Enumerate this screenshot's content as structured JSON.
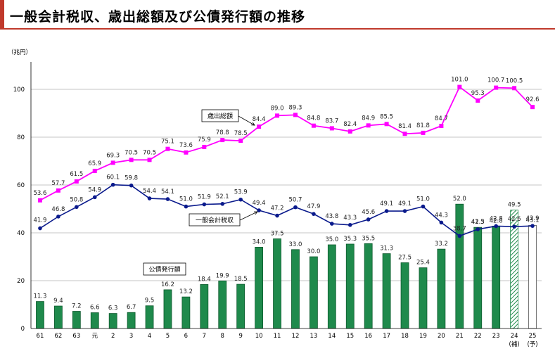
{
  "page": {
    "title": "一般会計税収、歳出総額及び公債発行額の推移",
    "accent_color": "#c0392b"
  },
  "chart_data": {
    "type": "bar",
    "unit_label": "（兆円）",
    "ylim": [
      0,
      110
    ],
    "yticks": [
      0,
      20,
      40,
      60,
      80,
      100
    ],
    "categories": [
      "61",
      "62",
      "63",
      "元",
      "2",
      "3",
      "4",
      "5",
      "6",
      "7",
      "8",
      "9",
      "10",
      "11",
      "12",
      "13",
      "14",
      "15",
      "16",
      "17",
      "18",
      "19",
      "20",
      "21",
      "22",
      "23",
      "24",
      "25"
    ],
    "category_notes": {
      "24": "(補)",
      "25": "(予)"
    },
    "series": [
      {
        "name": "歳出総額",
        "kind": "line",
        "color": "#ff00ff",
        "marker": "square",
        "values": [
          53.6,
          57.7,
          61.5,
          65.9,
          69.3,
          70.5,
          70.5,
          75.1,
          73.6,
          75.9,
          78.8,
          78.5,
          84.4,
          89.0,
          89.3,
          84.8,
          83.7,
          82.4,
          84.9,
          85.5,
          81.4,
          81.8,
          84.7,
          101.0,
          95.3,
          100.7,
          100.5,
          92.6
        ]
      },
      {
        "name": "一般会計税収",
        "kind": "line",
        "color": "#0a1a8c",
        "marker": "circle",
        "values": [
          41.9,
          46.8,
          50.8,
          54.9,
          60.1,
          59.8,
          54.4,
          54.1,
          51.0,
          51.9,
          52.1,
          53.9,
          49.4,
          47.2,
          50.7,
          47.9,
          43.8,
          43.3,
          45.6,
          49.1,
          49.1,
          51.0,
          44.3,
          38.7,
          41.5,
          42.8,
          42.6,
          42.9
        ]
      },
      {
        "name": "公債発行額",
        "kind": "bar",
        "color": "#1f8a4c",
        "values": [
          11.3,
          9.4,
          7.2,
          6.6,
          6.3,
          6.7,
          9.5,
          16.2,
          13.2,
          18.4,
          19.9,
          18.5,
          34.0,
          37.5,
          33.0,
          30.0,
          35.0,
          35.3,
          35.5,
          31.3,
          27.5,
          25.4,
          33.2,
          52.0,
          42.3,
          42.8,
          49.5,
          43.1
        ],
        "styles": {
          "24": "hatched",
          "25": "outline"
        }
      }
    ],
    "legend_boxes": {
      "expenditure": "歳出総額",
      "tax": "一般会計税収",
      "bonds": "公債発行額"
    }
  }
}
